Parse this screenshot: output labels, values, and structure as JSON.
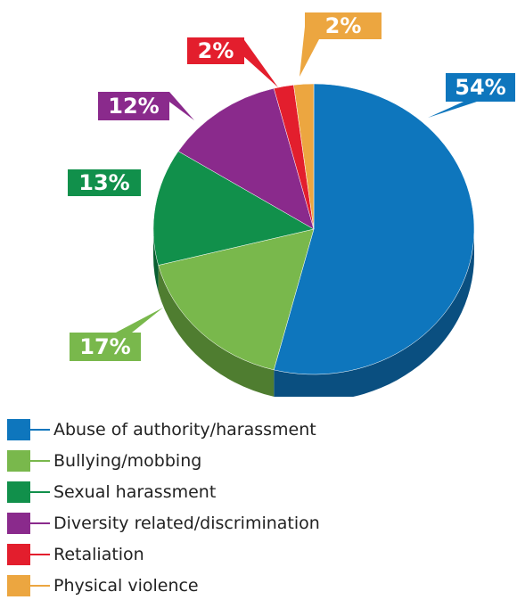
{
  "chart_data": {
    "type": "pie",
    "title": "",
    "slices": [
      {
        "label": "Abuse of authority/harassment",
        "value": 54,
        "display": "54%",
        "color": "#0e76bd",
        "dark": "#0a4f80"
      },
      {
        "label": "Bullying/mobbing",
        "value": 17,
        "display": "17%",
        "color": "#79b84c",
        "dark": "#4f7d30"
      },
      {
        "label": "Sexual harassment",
        "value": 13,
        "display": "13%",
        "color": "#11904b",
        "dark": "#0a5f31"
      },
      {
        "label": "Diversity related/discrimination",
        "value": 12,
        "display": "12%",
        "color": "#8a2a8c",
        "dark": "#5b1a5c"
      },
      {
        "label": "Retaliation",
        "value": 2,
        "display": "2%",
        "color": "#e31e2d",
        "dark": "#9a141f"
      },
      {
        "label": "Physical violence",
        "value": 2,
        "display": "2%",
        "color": "#eca640",
        "dark": "#a8722a"
      }
    ],
    "legend_position": "bottom"
  }
}
